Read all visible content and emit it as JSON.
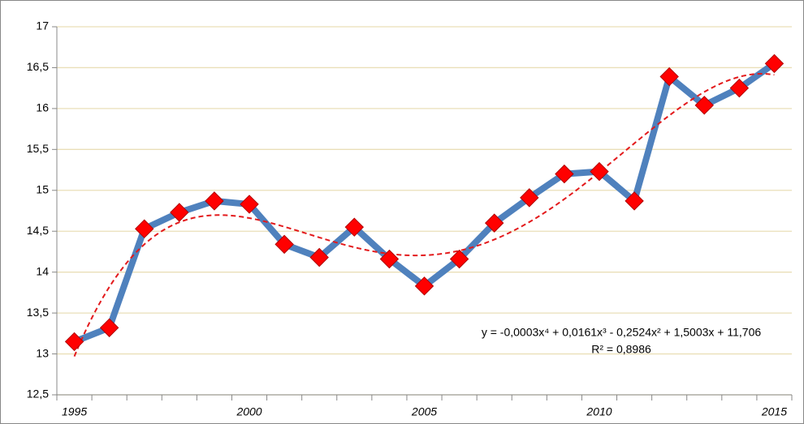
{
  "chart_data": {
    "type": "line",
    "categories": [
      "1995",
      null,
      null,
      null,
      null,
      "2000",
      null,
      null,
      null,
      null,
      "2005",
      null,
      null,
      null,
      null,
      "2010",
      null,
      null,
      null,
      null,
      "2015"
    ],
    "series": [
      {
        "color": "#4f81bd",
        "marker_color": "#ff0000",
        "values": [
          13.15,
          13.32,
          14.53,
          14.73,
          14.87,
          14.83,
          14.34,
          14.18,
          14.55,
          14.16,
          13.83,
          14.16,
          14.6,
          14.91,
          15.2,
          15.23,
          14.87,
          16.39,
          16.04,
          16.25,
          16.55
        ]
      }
    ],
    "trendline": {
      "type": "polynomial",
      "order": 4,
      "color": "#e31a1c",
      "equation": "y = -0,0003x⁴ + 0,0161x³ - 0,2524x² + 1,5003x + 11,706",
      "r_squared": "R² = 0,8986"
    },
    "ylim": [
      12.5,
      17
    ],
    "yticks": [
      {
        "value": 12.5,
        "label": "12,5"
      },
      13,
      {
        "value": 13.5,
        "label": "13,5"
      },
      14,
      {
        "value": 14.5,
        "label": "14,5"
      },
      15,
      {
        "value": 15.5,
        "label": "15,5"
      },
      16,
      {
        "value": 16.5,
        "label": "16,5"
      },
      17
    ],
    "grid": true,
    "grid_color": "#eadfb8"
  }
}
